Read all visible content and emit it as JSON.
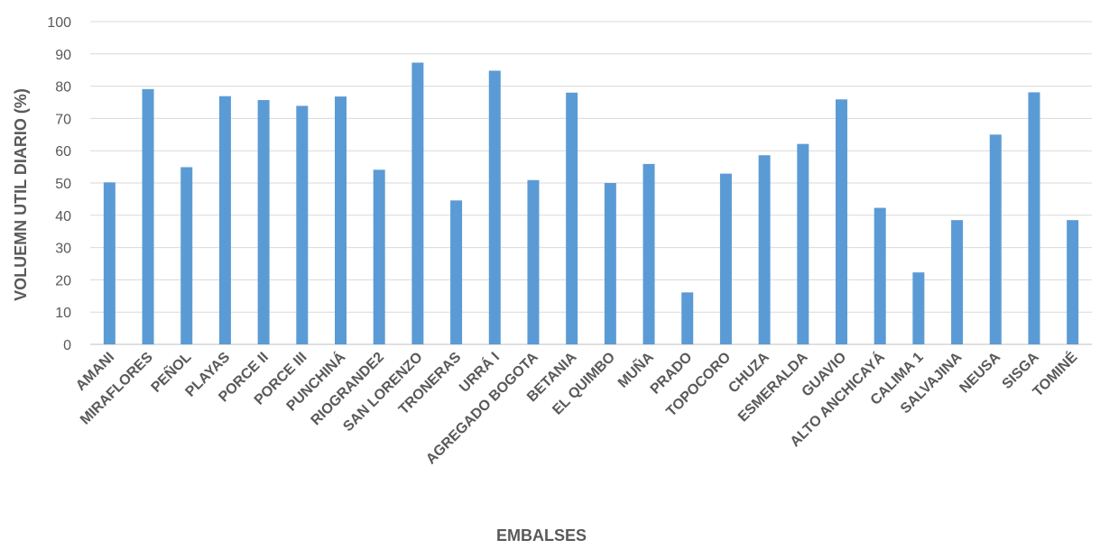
{
  "chart_data": {
    "type": "bar",
    "title": "",
    "xlabel": "EMBALSES",
    "ylabel": "VOLUEMN UTIL DIARIO (%)",
    "ylim": [
      0,
      100
    ],
    "yticks": [
      "0",
      "10",
      "20",
      "30",
      "40",
      "50",
      "60",
      "70",
      "80",
      "90",
      "100"
    ],
    "grid": true,
    "legend": "none",
    "bar_color": "#5b9bd5",
    "categories": [
      "AMANI",
      "MIRAFLORES",
      "PEÑOL",
      "PLAYAS",
      "PORCE II",
      "PORCE III",
      "PUNCHINÁ",
      "RIOGRANDE2",
      "SAN LORENZO",
      "TRONERAS",
      "URRÁ I",
      "AGREGADO BOGOTA",
      "BETANIA",
      "EL QUIMBO",
      "MUÑA",
      "PRADO",
      "TOPOCORO",
      "CHUZA",
      "ESMERALDA",
      "GUAVIO",
      "ALTO ANCHICAYÁ",
      "CALIMA 1",
      "SALVAJINA",
      "NEUSA",
      "SISGA",
      "TOMINÉ"
    ],
    "values": [
      50.2,
      79.1,
      54.9,
      76.9,
      75.7,
      73.9,
      76.8,
      54.1,
      87.3,
      44.6,
      84.8,
      50.9,
      78.0,
      50.0,
      55.9,
      16.1,
      52.9,
      58.6,
      62.1,
      75.9,
      42.3,
      22.3,
      38.5,
      65.0,
      78.1,
      38.5
    ]
  }
}
